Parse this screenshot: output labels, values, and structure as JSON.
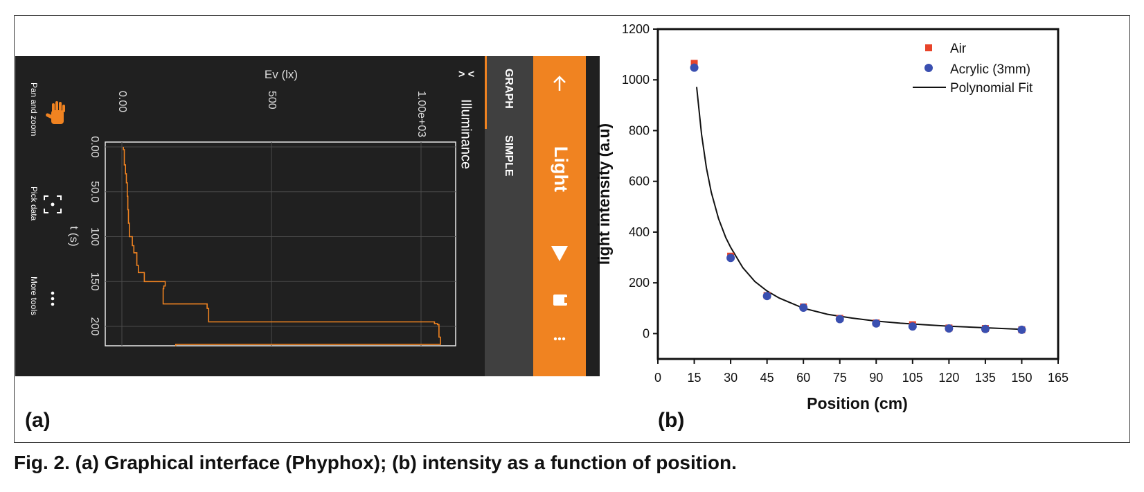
{
  "panel_a": {
    "label": "(a)",
    "app_title": "Light",
    "tab_graph": "GRAPH",
    "tab_simple": "SIMPLE",
    "graph_title": "Illuminance",
    "collapse_glyph": "> <",
    "x_axis_label": "Ev (lx)",
    "y_axis_label": "t (s)",
    "ev_ticks": [
      "0.00",
      "500",
      "1.00e+03"
    ],
    "t_ticks": [
      "0.00",
      "50.0",
      "100",
      "150",
      "200"
    ],
    "tools": {
      "pan_zoom": "Pan and zoom",
      "pick_data": "Pick data",
      "more_tools": "More tools"
    },
    "colors": {
      "accent": "#F08321",
      "background": "#202020",
      "tab_bar": "#404040",
      "trace": "#F08321"
    },
    "icons": [
      "back-arrow-icon",
      "dropdown-triangle-icon",
      "phone-icon",
      "more-vertical-icon",
      "hand-icon",
      "crosshair-icon",
      "dots-icon"
    ],
    "trace_data": {
      "t": [
        0,
        3,
        3,
        20,
        20,
        30,
        30,
        40,
        40,
        55,
        55,
        70,
        70,
        85,
        85,
        100,
        100,
        110,
        110,
        118,
        118,
        132,
        132,
        140,
        140,
        150,
        150,
        155,
        155,
        158,
        158,
        175,
        175,
        180,
        180,
        195,
        195,
        197,
        197,
        198,
        198,
        212,
        212,
        220,
        220,
        222
      ],
      "ev": [
        5,
        5,
        8,
        8,
        12,
        12,
        15,
        15,
        18,
        18,
        20,
        20,
        22,
        22,
        25,
        25,
        35,
        35,
        40,
        40,
        50,
        50,
        55,
        55,
        75,
        75,
        145,
        145,
        140,
        140,
        138,
        138,
        285,
        285,
        290,
        290,
        1045,
        1045,
        1055,
        1055,
        1060,
        1060,
        1065,
        1065,
        180,
        180
      ],
      "ev_range": [
        0,
        1100
      ],
      "t_range": [
        0,
        222
      ]
    }
  },
  "panel_b": {
    "label": "(b)",
    "chart_data": {
      "type": "scatter",
      "xlabel": "Position (cm)",
      "ylabel": "light intensity (a.u)",
      "xlim": [
        0,
        165
      ],
      "ylim": [
        -100,
        1200
      ],
      "x_ticks": [
        0,
        15,
        30,
        45,
        60,
        75,
        90,
        105,
        120,
        135,
        150,
        165
      ],
      "y_ticks": [
        0,
        200,
        400,
        600,
        800,
        1000,
        1200
      ],
      "legend_position": "top-right",
      "grid": false,
      "series": [
        {
          "name": "Air",
          "marker": "square",
          "color": "#E8442A",
          "x": [
            15,
            30,
            45,
            60,
            75,
            90,
            105,
            120,
            135,
            150
          ],
          "y": [
            1065,
            305,
            150,
            105,
            60,
            42,
            35,
            22,
            20,
            15
          ]
        },
        {
          "name": "Acrylic (3mm)",
          "marker": "circle",
          "color": "#3A4FB0",
          "x": [
            15,
            30,
            45,
            60,
            75,
            90,
            105,
            120,
            135,
            150
          ],
          "y": [
            1048,
            298,
            148,
            102,
            57,
            40,
            28,
            20,
            18,
            15
          ]
        },
        {
          "name": "Polynomial Fit",
          "marker": "line",
          "color": "#111111",
          "x": [
            16,
            18,
            20,
            22,
            25,
            28,
            30,
            35,
            40,
            45,
            50,
            60,
            70,
            80,
            90,
            100,
            110,
            120,
            130,
            140,
            150
          ],
          "y": [
            972,
            785,
            653,
            557,
            453,
            378,
            340,
            260,
            205,
            168,
            140,
            100,
            76,
            61,
            49,
            41,
            35,
            29,
            25,
            21,
            17
          ]
        }
      ]
    }
  },
  "caption": "Fig. 2. (a) Graphical interface (Phyphox); (b) intensity as a function of position."
}
